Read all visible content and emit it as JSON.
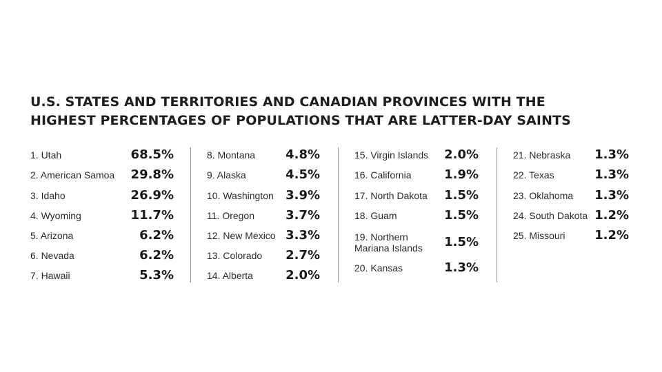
{
  "title": {
    "line1": "U.S. STATES AND TERRITORIES AND CANADIAN PROVINCES WITH THE",
    "line2": "HIGHEST PERCENTAGES OF POPULATIONS THAT ARE LATTER-DAY SAINTS"
  },
  "columns": [
    [
      {
        "name": "1. Utah",
        "value": "68.5%"
      },
      {
        "name": "2. American Samoa",
        "value": "29.8%"
      },
      {
        "name": "3. Idaho",
        "value": "26.9%"
      },
      {
        "name": "4. Wyoming",
        "value": "11.7%"
      },
      {
        "name": "5. Arizona",
        "value": "6.2%"
      },
      {
        "name": "6. Nevada",
        "value": "6.2%"
      },
      {
        "name": "7. Hawaii",
        "value": "5.3%"
      }
    ],
    [
      {
        "name": "8. Montana",
        "value": "4.8%"
      },
      {
        "name": "9. Alaska",
        "value": "4.5%"
      },
      {
        "name": "10. Washington",
        "value": "3.9%"
      },
      {
        "name": "11. Oregon",
        "value": "3.7%"
      },
      {
        "name": "12. New Mexico",
        "value": "3.3%"
      },
      {
        "name": "13. Colorado",
        "value": "2.7%"
      },
      {
        "name": "14. Alberta",
        "value": "2.0%"
      }
    ],
    [
      {
        "name": "15. Virgin Islands",
        "value": "2.0%"
      },
      {
        "name": "16. California",
        "value": "1.9%"
      },
      {
        "name": "17. North Dakota",
        "value": "1.5%"
      },
      {
        "name": "18. Guam",
        "value": "1.5%"
      },
      {
        "name": "19. Northern Mariana Islands",
        "value": "1.5%"
      },
      {
        "name": "20. Kansas",
        "value": "1.3%"
      }
    ],
    [
      {
        "name": "21. Nebraska",
        "value": "1.3%"
      },
      {
        "name": "22. Texas",
        "value": "1.3%"
      },
      {
        "name": "23. Oklahoma",
        "value": "1.3%"
      },
      {
        "name": "24. South Dakota",
        "value": "1.2%"
      },
      {
        "name": "25. Missouri",
        "value": "1.2%"
      }
    ]
  ]
}
